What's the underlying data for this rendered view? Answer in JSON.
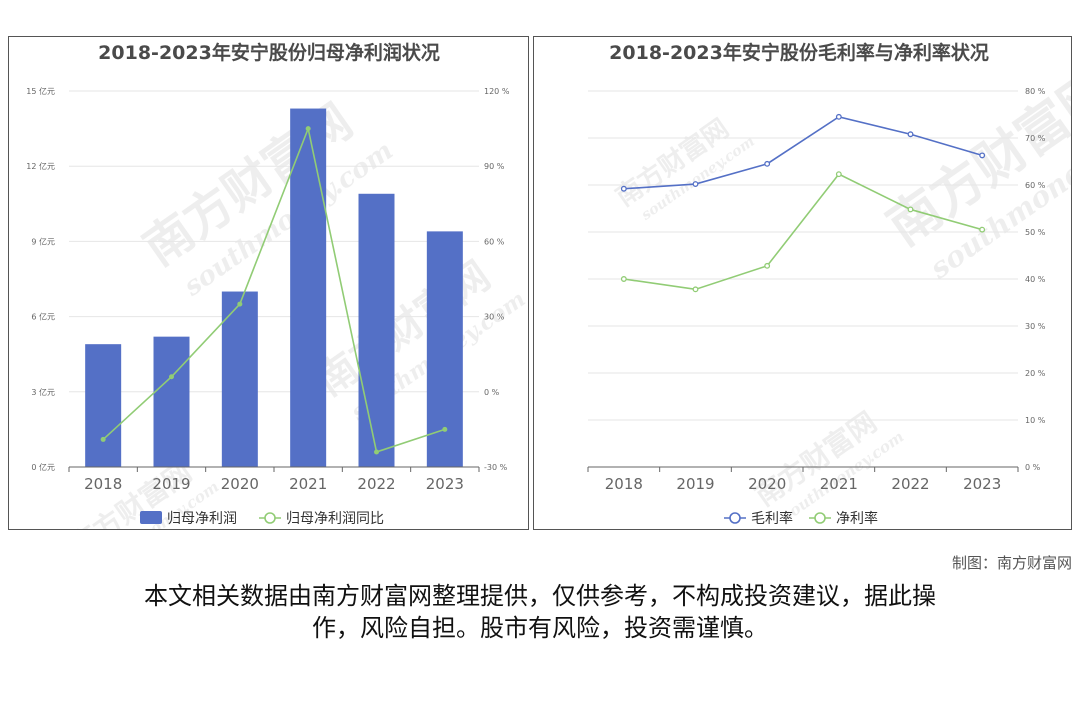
{
  "credit": "制图：南方财富网",
  "disclaimer_line1": "本文相关数据由南方财富网整理提供，仅供参考，不构成投资建议，据此操",
  "disclaimer_line2": "作，风险自担。股市有风险，投资需谨慎。",
  "watermark": {
    "brand": "南方财富网",
    "url": "southmoney.com"
  },
  "colors": {
    "bar": "#5470c6",
    "green": "#91cc75",
    "blue_line": "#5470c6"
  },
  "chart_data": [
    {
      "type": "bar",
      "title": "2018-2023年安宁股份归母净利润状况",
      "categories": [
        "2018",
        "2019",
        "2020",
        "2021",
        "2022",
        "2023"
      ],
      "y_left": {
        "ticks": [
          "0 亿元",
          "3 亿元",
          "6 亿元",
          "9 亿元",
          "12 亿元",
          "15 亿元"
        ],
        "lim": [
          0,
          15
        ]
      },
      "y_right": {
        "ticks": [
          "-30 %",
          "0 %",
          "30 %",
          "60 %",
          "90 %",
          "120 %"
        ],
        "lim": [
          -30,
          120
        ]
      },
      "series": [
        {
          "name": "归母净利润",
          "type": "bar",
          "axis": "left",
          "values": [
            4.9,
            5.2,
            7.0,
            14.3,
            10.9,
            9.4
          ]
        },
        {
          "name": "归母净利润同比",
          "type": "line",
          "axis": "right",
          "values": [
            -19,
            6,
            35,
            105,
            -24,
            -15
          ]
        }
      ],
      "legend": "bottom",
      "grid": true
    },
    {
      "type": "line",
      "title": "2018-2023年安宁股份毛利率与净利率状况",
      "categories": [
        "2018",
        "2019",
        "2020",
        "2021",
        "2022",
        "2023"
      ],
      "y_right": {
        "ticks": [
          "0 %",
          "10 %",
          "20 %",
          "30 %",
          "40 %",
          "50 %",
          "60 %",
          "70 %",
          "80 %"
        ],
        "lim": [
          0,
          80
        ]
      },
      "series": [
        {
          "name": "毛利率",
          "values": [
            59.2,
            60.2,
            64.5,
            74.5,
            70.8,
            66.3
          ]
        },
        {
          "name": "净利率",
          "values": [
            40.0,
            37.8,
            42.8,
            62.3,
            54.8,
            50.5
          ]
        }
      ],
      "legend": "bottom",
      "grid": true
    }
  ]
}
